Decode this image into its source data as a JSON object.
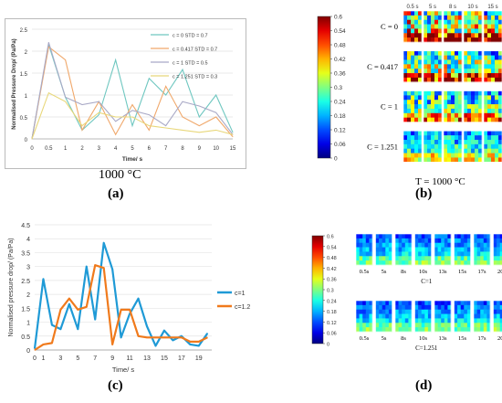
{
  "panels": {
    "a": {
      "label": "(a)",
      "caption": "1000 °C"
    },
    "b": {
      "label": "(b)",
      "caption": "T = 1000 °C"
    },
    "c": {
      "label": "(c)"
    },
    "d": {
      "label": "(d)"
    }
  },
  "chart_data": [
    {
      "id": "a",
      "type": "line",
      "title": "",
      "xlabel": "Time/ s",
      "ylabel": "Normalised Pressure Drop/ (Pa/Pa)",
      "categories": [
        "0",
        "0.5",
        "1",
        "2",
        "3",
        "4",
        "5",
        "6",
        "7",
        "8",
        "9",
        "10",
        "15"
      ],
      "ylim": [
        0,
        2.5
      ],
      "yticks": [
        "0",
        "0.5",
        "1",
        "1.5",
        "2",
        "2.5"
      ],
      "grid": true,
      "legend": "top-right",
      "series": [
        {
          "name": "c = 0    STD = 0.7",
          "color": "#6fc7c0",
          "values": [
            0,
            2.15,
            0.95,
            0.2,
            0.55,
            1.8,
            0.3,
            1.38,
            1.0,
            1.58,
            0.5,
            1.0,
            0.15
          ]
        },
        {
          "name": "c = 0.417   STD = 0.7",
          "color": "#f0a86b",
          "values": [
            0,
            2.1,
            1.8,
            0.2,
            0.85,
            0.1,
            0.78,
            0.2,
            1.2,
            0.5,
            0.3,
            0.5,
            0.05
          ]
        },
        {
          "name": "c = 1    STD = 0.5",
          "color": "#a9a9c6",
          "values": [
            0,
            2.2,
            0.95,
            0.78,
            0.85,
            0.4,
            0.65,
            0.55,
            0.3,
            0.85,
            0.75,
            0.6,
            0.1
          ]
        },
        {
          "name": "c = 1.251   STD = 0.3",
          "color": "#e8d77a",
          "values": [
            0,
            1.05,
            0.85,
            0.3,
            0.6,
            0.5,
            0.5,
            0.3,
            0.25,
            0.2,
            0.15,
            0.2,
            0.1
          ]
        }
      ]
    },
    {
      "id": "c",
      "type": "line",
      "title": "",
      "xlabel": "Time/ s",
      "ylabel": "Normalised pressure drop/ (Pa/Pa)",
      "x": [
        0,
        1,
        2,
        3,
        4,
        5,
        6,
        7,
        8,
        9,
        10,
        11,
        12,
        13,
        14,
        15,
        16,
        17,
        18,
        19,
        20
      ],
      "xticks": [
        "0",
        "1",
        "3",
        "5",
        "7",
        "9",
        "11",
        "13",
        "15",
        "17",
        "19"
      ],
      "xtick_values": [
        0,
        1,
        3,
        5,
        7,
        9,
        11,
        13,
        15,
        17,
        19
      ],
      "xlim": [
        0,
        20.5
      ],
      "ylim": [
        0,
        4.5
      ],
      "yticks": [
        "0",
        "0.5",
        "1",
        "1.5",
        "2",
        "2.5",
        "3",
        "3.5",
        "4",
        "4.5"
      ],
      "grid": true,
      "legend": "right",
      "series": [
        {
          "name": "c=1",
          "color": "#1f9ad6",
          "values": [
            0.05,
            2.55,
            0.9,
            0.75,
            1.65,
            0.75,
            3.0,
            1.1,
            3.85,
            2.9,
            0.45,
            1.3,
            1.85,
            0.85,
            0.15,
            0.7,
            0.35,
            0.5,
            0.2,
            0.15,
            0.6
          ]
        },
        {
          "name": "c=1.2",
          "color": "#f07a1c",
          "values": [
            0.0,
            0.2,
            0.25,
            1.45,
            1.85,
            1.45,
            1.55,
            3.05,
            2.95,
            0.2,
            1.45,
            1.45,
            0.5,
            0.45,
            0.45,
            0.45,
            0.45,
            0.45,
            0.3,
            0.3,
            0.45
          ]
        }
      ]
    },
    {
      "id": "colorbar-b",
      "type": "heatmap",
      "ticks": [
        "0.6",
        "0.54",
        "0.48",
        "0.42",
        "0.36",
        "0.3",
        "0.24",
        "0.18",
        "0.12",
        "0.06",
        "0"
      ],
      "rows": [
        "C = 0",
        "C = 0.417",
        "C = 1",
        "C = 1.251"
      ],
      "columns": [
        "0.5 s",
        "5 s",
        "8 s",
        "10 s",
        "15 s"
      ]
    },
    {
      "id": "colorbar-d",
      "type": "heatmap",
      "ticks": [
        "0.6",
        "0.54",
        "0.48",
        "0.42",
        "0.36",
        "0.3",
        "0.24",
        "0.18",
        "0.12",
        "0.06",
        "0"
      ],
      "groups": [
        {
          "label": "C=1",
          "times": [
            "0.5s",
            "5s",
            "8s",
            "10s",
            "13s",
            "15s",
            "17s",
            "20s"
          ]
        },
        {
          "label": "C=1.251",
          "times": [
            "0.5s",
            "5s",
            "8s",
            "10s",
            "13s",
            "15s",
            "17s",
            "20s"
          ]
        }
      ]
    }
  ]
}
